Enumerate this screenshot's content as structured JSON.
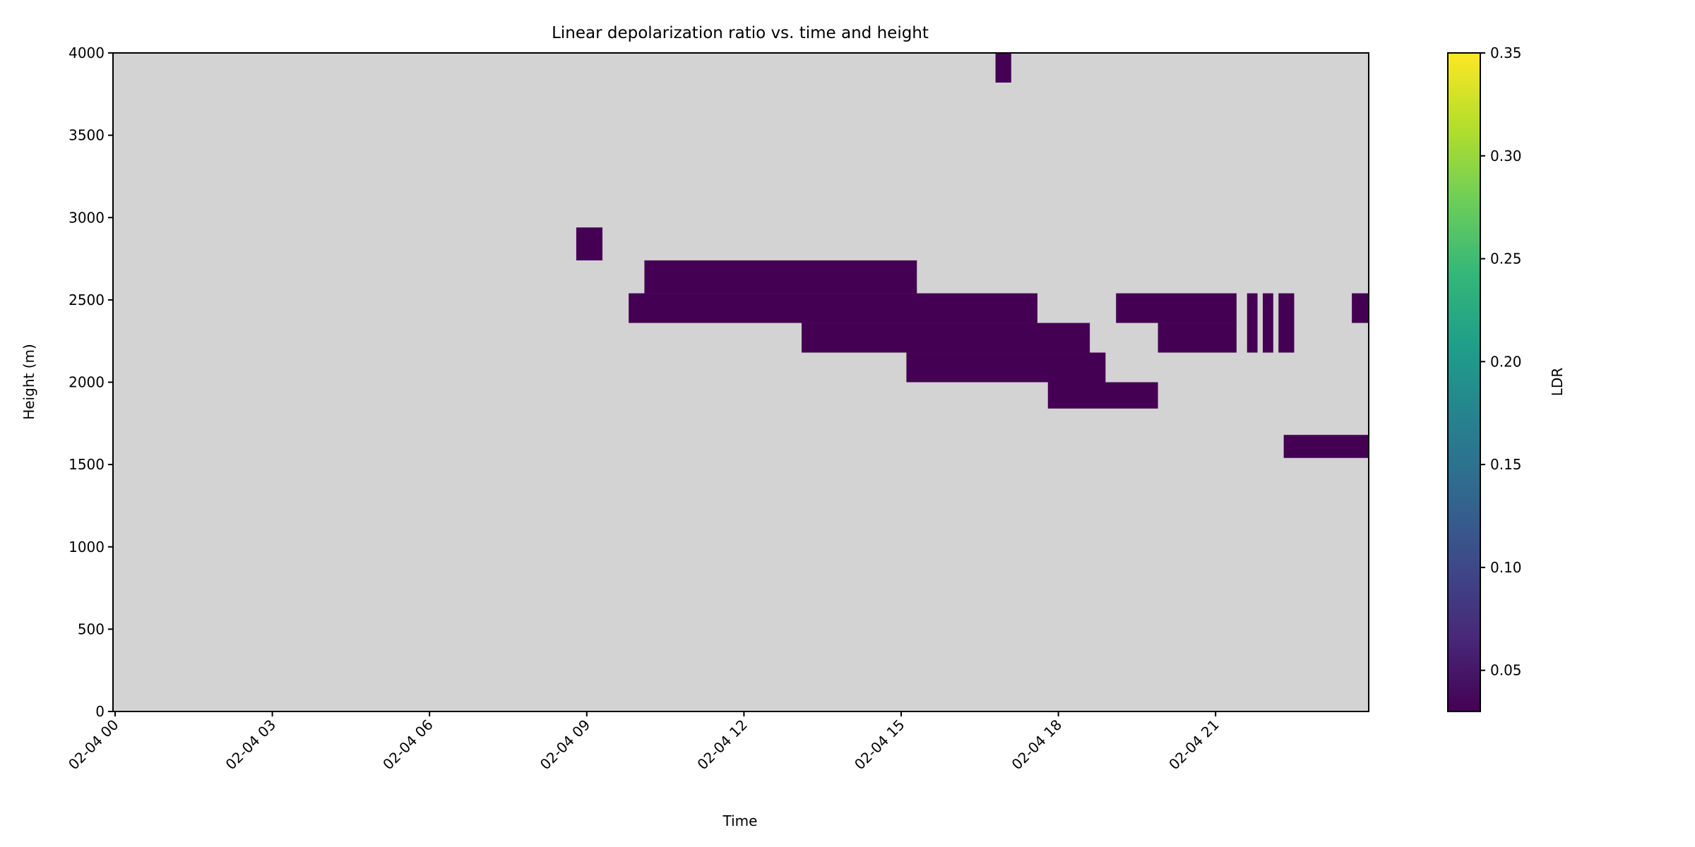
{
  "chart_data": {
    "type": "heatmap",
    "title": "Linear depolarization ratio vs. time and height",
    "xlabel": "Time",
    "ylabel": "Height (m)",
    "xlim": [
      "02-04 00:00",
      "02-04 24:00"
    ],
    "ylim": [
      0,
      4000
    ],
    "x_ticks": [
      "02-04 00",
      "02-04 03",
      "02-04 06",
      "02-04 09",
      "02-04 12",
      "02-04 15",
      "02-04 18",
      "02-04 21"
    ],
    "y_ticks": [
      "0",
      "500",
      "1000",
      "1500",
      "2000",
      "2500",
      "3000",
      "3500",
      "4000"
    ],
    "grid": false,
    "missing_color": "#d3d3d3",
    "colorbar": {
      "label": "LDR",
      "colormap": "viridis",
      "range": [
        0.03,
        0.35
      ],
      "ticks": [
        "0.05",
        "0.10",
        "0.15",
        "0.20",
        "0.25",
        "0.30",
        "0.35"
      ],
      "stops": [
        "#440154",
        "#482878",
        "#3e4989",
        "#31688e",
        "#26828e",
        "#1f9e89",
        "#35b779",
        "#6ece58",
        "#b5de2b",
        "#fde725"
      ]
    },
    "cells": [
      {
        "t0": 16.8,
        "t1": 17.1,
        "h0": 3820,
        "h1": 4000,
        "ldr": 0.03
      },
      {
        "t0": 8.8,
        "t1": 9.3,
        "h0": 2740,
        "h1": 2940,
        "ldr": 0.03
      },
      {
        "t0": 10.1,
        "t1": 15.3,
        "h0": 2540,
        "h1": 2740,
        "ldr": 0.03
      },
      {
        "t0": 9.8,
        "t1": 17.6,
        "h0": 2360,
        "h1": 2540,
        "ldr": 0.03
      },
      {
        "t0": 19.1,
        "t1": 21.4,
        "h0": 2360,
        "h1": 2540,
        "ldr": 0.03
      },
      {
        "t0": 21.6,
        "t1": 21.8,
        "h0": 2180,
        "h1": 2540,
        "ldr": 0.03
      },
      {
        "t0": 21.9,
        "t1": 22.1,
        "h0": 2180,
        "h1": 2540,
        "ldr": 0.03
      },
      {
        "t0": 22.2,
        "t1": 22.5,
        "h0": 2180,
        "h1": 2540,
        "ldr": 0.03
      },
      {
        "t0": 23.6,
        "t1": 24.0,
        "h0": 2360,
        "h1": 2540,
        "ldr": 0.03
      },
      {
        "t0": 13.1,
        "t1": 18.6,
        "h0": 2180,
        "h1": 2360,
        "ldr": 0.03
      },
      {
        "t0": 19.9,
        "t1": 21.4,
        "h0": 2180,
        "h1": 2360,
        "ldr": 0.03
      },
      {
        "t0": 15.1,
        "t1": 18.9,
        "h0": 2000,
        "h1": 2180,
        "ldr": 0.03
      },
      {
        "t0": 17.8,
        "t1": 19.9,
        "h0": 1840,
        "h1": 2000,
        "ldr": 0.03
      },
      {
        "t0": 22.3,
        "t1": 24.0,
        "h0": 1540,
        "h1": 1680,
        "ldr": 0.03
      }
    ]
  }
}
